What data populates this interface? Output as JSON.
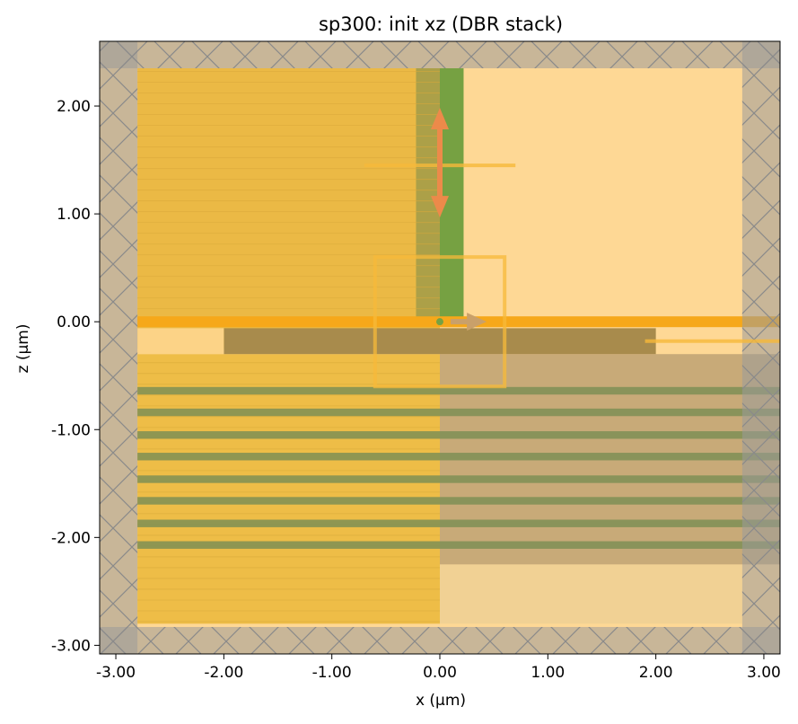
{
  "chart_data": {
    "type": "heatmap",
    "title": "sp300: init xz (DBR stack)",
    "xlabel": "x (μm)",
    "ylabel": "z (μm)",
    "xlim": [
      -3.15,
      3.15
    ],
    "ylim": [
      -3.08,
      2.6
    ],
    "xticks": [
      -3.0,
      -2.0,
      -1.0,
      0.0,
      1.0,
      2.0,
      3.0
    ],
    "yticks": [
      -3.0,
      -2.0,
      -1.0,
      0.0,
      1.0,
      2.0
    ],
    "xtick_labels": [
      "-3.00",
      "-2.00",
      "-1.00",
      "0.00",
      "1.00",
      "2.00",
      "3.00"
    ],
    "ytick_labels": [
      "-3.00",
      "-2.00",
      "-1.00",
      "0.00",
      "1.00",
      "2.00"
    ],
    "grid": false,
    "pml_thickness": 0.35,
    "regions": [
      {
        "name": "background",
        "x": [
          -3.15,
          3.15
        ],
        "z": [
          -3.08,
          2.6
        ],
        "color": "#fed895"
      },
      {
        "name": "upper-left-substrate",
        "x": [
          -2.8,
          0.0
        ],
        "z": [
          -0.25,
          2.35
        ],
        "color": "#ebb945"
      },
      {
        "name": "lower-left-substrate",
        "x": [
          -2.8,
          0.0
        ],
        "z": [
          -2.8,
          -0.3
        ],
        "color": "#eebd47"
      },
      {
        "name": "lower-right-region",
        "x": [
          0.0,
          2.8
        ],
        "z": [
          -2.8,
          -2.25
        ],
        "color": "#f1d194"
      },
      {
        "name": "dbr-stack-region",
        "x": [
          0.0,
          3.15
        ],
        "z": [
          -2.25,
          -0.3
        ],
        "color": "#c8aa78"
      },
      {
        "name": "dark-cap-layer",
        "x": [
          -2.0,
          2.0
        ],
        "z": [
          -0.3,
          -0.06
        ],
        "color": "#a88b4c"
      },
      {
        "name": "upper-left-cap-layer",
        "x": [
          -2.8,
          -2.0
        ],
        "z": [
          -0.3,
          -0.06
        ],
        "color": "#fcd387"
      },
      {
        "name": "green-waveguide",
        "x": [
          -0.22,
          0.22
        ],
        "z": [
          0.0,
          2.35
        ],
        "color": "#76a142"
      },
      {
        "name": "olive-waveguide-part",
        "x": [
          -0.22,
          0.0
        ],
        "z": [
          0.0,
          2.35
        ],
        "color": "#aca048"
      }
    ],
    "dbr_layers_z": [
      -0.64,
      -1.05,
      -1.46,
      -1.87
    ],
    "dbr_layer_pairs_z": [
      -0.84,
      -1.25,
      -1.66,
      -2.07
    ],
    "dbr_layer_thickness": 0.07,
    "source_line_z": 0.0,
    "monitor_box": {
      "x": [
        -0.6,
        0.6
      ],
      "z": [
        -0.6,
        0.6
      ]
    },
    "monitor_line_upper": {
      "x": [
        -0.7,
        0.7
      ],
      "z": 1.45
    },
    "monitor_line_lower": {
      "x": [
        1.9,
        3.15
      ],
      "z": -0.18
    },
    "source_arrow_z": {
      "x": 0.0,
      "z": [
        1.15,
        1.8
      ]
    },
    "source_arrow_x": {
      "x": [
        0.1,
        0.35
      ],
      "z": 0.0
    }
  }
}
